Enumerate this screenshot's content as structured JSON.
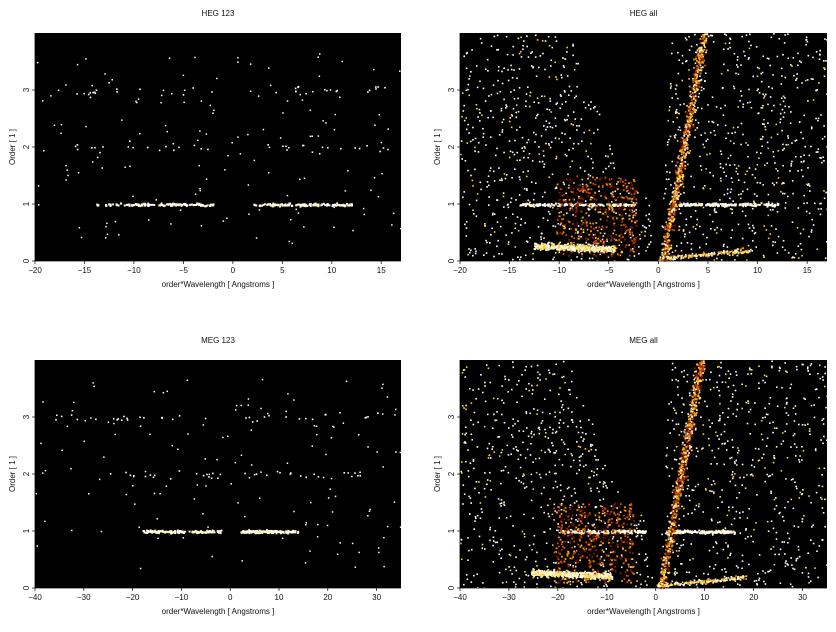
{
  "chart_data": [
    {
      "type": "heatmap",
      "title": "HEG 123",
      "xlabel": "order*Wavelength [ Angstroms ]",
      "ylabel": "Order [ 1 ]",
      "xlim": [
        -20,
        17
      ],
      "ylim": [
        0,
        4
      ],
      "xticks": [
        "-20",
        "-15",
        "-10",
        "-5",
        "0",
        "5",
        "10",
        "15"
      ],
      "yticks": [
        "0",
        "1",
        "2",
        "3"
      ],
      "background": "#000000",
      "colormap": [
        "#3a0800",
        "#8b1a00",
        "#d9480f",
        "#f59f00",
        "#ffd43b",
        "#fff3bf",
        "#ffffff"
      ],
      "bands": [
        {
          "order": 1,
          "x_ranges": [
            [
              -14,
              -2
            ],
            [
              2,
              12
            ]
          ],
          "intensity": "high"
        },
        {
          "order": 2,
          "x_ranges": [
            [
              -18,
              -2
            ],
            [
              2,
              16
            ]
          ],
          "intensity": "low"
        },
        {
          "order": 3,
          "x_ranges": [
            [
              -18,
              -2
            ],
            [
              2,
              16
            ]
          ],
          "intensity": "low"
        }
      ]
    },
    {
      "type": "heatmap",
      "title": "HEG all",
      "xlabel": "order*Wavelength [ Angstroms ]",
      "ylabel": "Order [ 1 ]",
      "xlim": [
        -20,
        17
      ],
      "ylim": [
        0,
        4
      ],
      "xticks": [
        "-20",
        "-15",
        "-10",
        "-5",
        "0",
        "5",
        "10",
        "15"
      ],
      "yticks": [
        "0",
        "1",
        "2",
        "3"
      ],
      "background": "#000000",
      "colormap": [
        "#3a0800",
        "#8b1a00",
        "#d9480f",
        "#f59f00",
        "#ffd43b",
        "#fff3bf",
        "#ffffff"
      ],
      "bands": [
        {
          "order": 1,
          "x_ranges": [
            [
              -14,
              -2
            ],
            [
              2,
              12
            ]
          ],
          "intensity": "high"
        }
      ]
    },
    {
      "type": "heatmap",
      "title": "MEG 123",
      "xlabel": "order*Wavelength [ Angstroms ]",
      "ylabel": "Order [ 1 ]",
      "xlim": [
        -40,
        35
      ],
      "ylim": [
        0,
        4
      ],
      "xticks": [
        "-40",
        "-30",
        "-20",
        "-10",
        "0",
        "10",
        "20",
        "30"
      ],
      "yticks": [
        "0",
        "1",
        "2",
        "3"
      ],
      "background": "#000000",
      "colormap": [
        "#3a0800",
        "#8b1a00",
        "#d9480f",
        "#f59f00",
        "#ffd43b",
        "#fff3bf",
        "#ffffff"
      ],
      "bands": [
        {
          "order": 1,
          "x_ranges": [
            [
              -18,
              -2
            ],
            [
              2,
              14
            ]
          ],
          "intensity": "high"
        },
        {
          "order": 2,
          "x_ranges": [
            [
              -32,
              -2
            ],
            [
              2,
              30
            ]
          ],
          "intensity": "low"
        },
        {
          "order": 3,
          "x_ranges": [
            [
              -36,
              -2
            ],
            [
              2,
              33
            ]
          ],
          "intensity": "low"
        }
      ]
    },
    {
      "type": "heatmap",
      "title": "MEG all",
      "xlabel": "order*Wavelength [ Angstroms ]",
      "ylabel": "Order [ 1 ]",
      "xlim": [
        -40,
        35
      ],
      "ylim": [
        0,
        4
      ],
      "xticks": [
        "-40",
        "-30",
        "-20",
        "-10",
        "0",
        "10",
        "20",
        "30"
      ],
      "yticks": [
        "0",
        "1",
        "2",
        "3"
      ],
      "background": "#000000",
      "colormap": [
        "#3a0800",
        "#8b1a00",
        "#d9480f",
        "#f59f00",
        "#ffd43b",
        "#fff3bf",
        "#ffffff"
      ],
      "bands": [
        {
          "order": 1,
          "x_ranges": [
            [
              -20,
              -2
            ],
            [
              2,
              16
            ]
          ],
          "intensity": "high"
        }
      ]
    }
  ]
}
